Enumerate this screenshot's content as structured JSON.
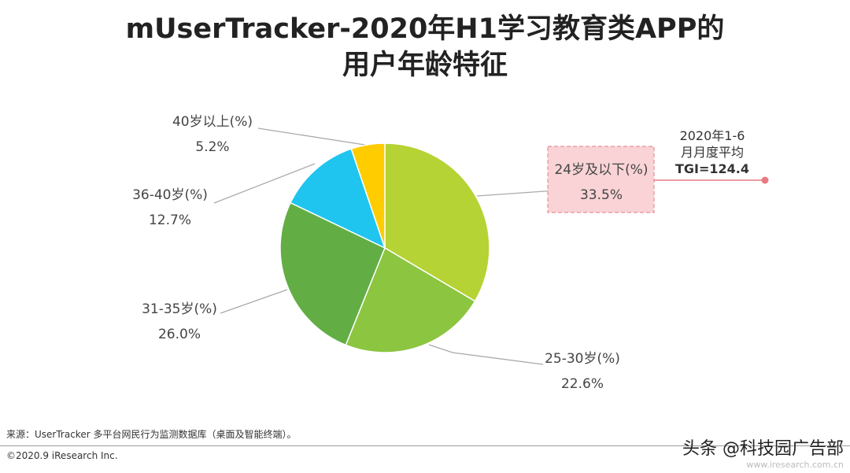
{
  "title_line1": "mUserTracker-2020年H1学习教育类APP的",
  "title_line2": "用户年龄特征",
  "chart_data": {
    "type": "pie",
    "start": "12 o'clock, clockwise",
    "slices": [
      {
        "label": "24岁及以下(%)",
        "value": "33.5%",
        "num": 33.5,
        "color": "#b5d334"
      },
      {
        "label": "25-30岁(%)",
        "value": "22.6%",
        "num": 22.6,
        "color": "#8cc540"
      },
      {
        "label": "31-35岁(%)",
        "value": "26.0%",
        "num": 26.0,
        "color": "#62ae45"
      },
      {
        "label": "36-40岁(%)",
        "value": "12.7%",
        "num": 12.7,
        "color": "#1fc5ef"
      },
      {
        "label": "40岁以上(%)",
        "value": "5.2%",
        "num": 5.2,
        "color": "#ffcc00"
      }
    ]
  },
  "callout": {
    "line1": "2020年1-6",
    "line2": "月月度平均",
    "line3": "TGI=124.4",
    "box_fill": "#f9d3d6",
    "box_border": "#e98f97",
    "line_color": "#e97a82"
  },
  "footer": {
    "source": "来源：UserTracker 多平台网民行为监测数据库（桌面及智能终端）。",
    "copyright": "©2020.9 iResearch Inc.",
    "watermark": "头条 @科技园广告部",
    "site": "www.iresearch.com.cn"
  }
}
